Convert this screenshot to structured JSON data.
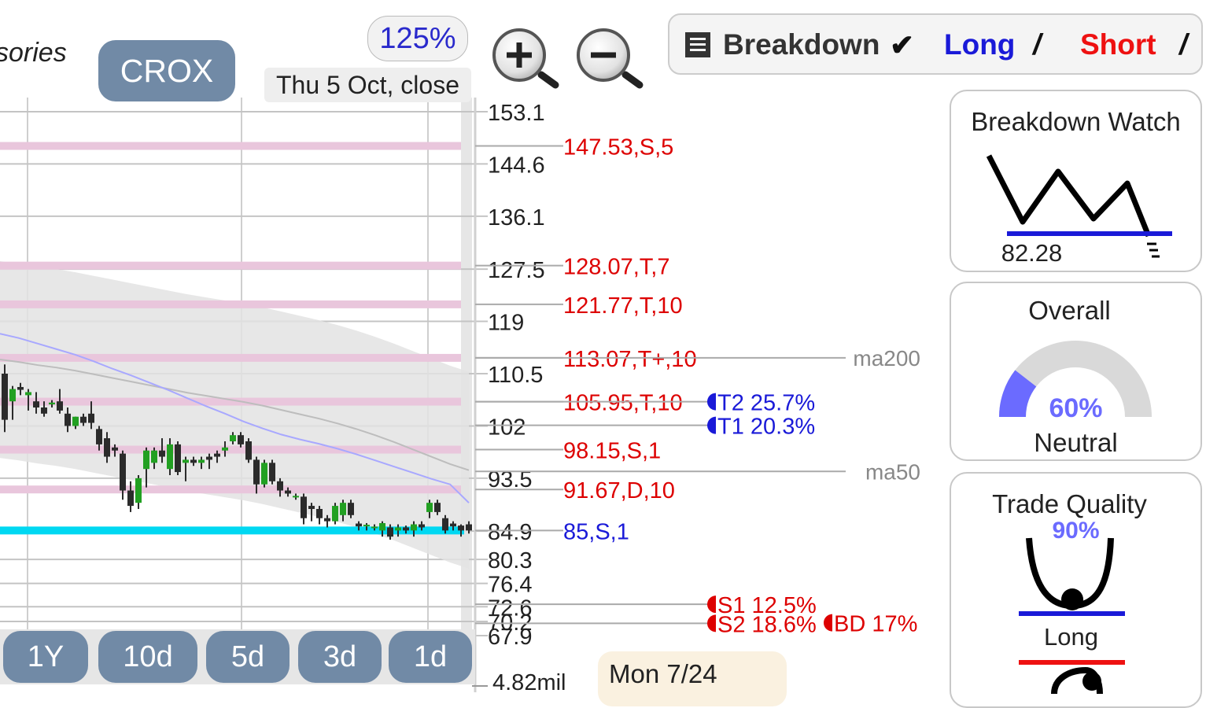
{
  "header": {
    "subtitle_fragment": "sories",
    "ticker": "CROX",
    "zoom_level": "125%",
    "date_label": "Thu 5 Oct, close"
  },
  "zoom_controls": {
    "zoom_in_icon": "magnifier-plus-icon",
    "zoom_out_icon": "magnifier-minus-icon"
  },
  "mode_bar": {
    "breakdown_label": "Breakdown",
    "long_label": "Long",
    "short_label": "Short",
    "breakdown_check": "✔",
    "long_check": "/",
    "short_check": "/"
  },
  "range_buttons": [
    "1Y",
    "10d",
    "5d",
    "3d",
    "1d"
  ],
  "bottom": {
    "volume_label": "4.82mil",
    "hover_date": "Mon 7/24"
  },
  "panels": {
    "breakdown_watch": {
      "title": "Breakdown Watch",
      "value": "82.28"
    },
    "overall": {
      "title": "Overall",
      "percent": "60%",
      "fraction": 0.6,
      "verdict": "Neutral"
    },
    "trade_quality": {
      "title": "Trade Quality",
      "percent": "90%",
      "verdict": "Long"
    }
  },
  "colors": {
    "up_candle": "#22a022",
    "down_candle": "#2b2b2b",
    "level_band": "#e9c6dc",
    "support_line": "#00d8f2",
    "red_text": "#dd0000",
    "blue_text": "#1a1ad8",
    "pill_bg": "#718aa6"
  },
  "chart_data": {
    "type": "candlestick",
    "ylim": [
      65.6,
      155.4
    ],
    "y_ticks": [
      "153.1",
      "144.6",
      "136.1",
      "127.5",
      "119",
      "110.5",
      "102",
      "93.5",
      "84.9",
      "80.3",
      "76.4",
      "72.6",
      "70.2",
      "67.9"
    ],
    "y_tick_values": [
      153.1,
      144.6,
      136.1,
      127.5,
      119,
      110.5,
      102,
      93.5,
      84.9,
      80.3,
      76.4,
      72.6,
      70.2,
      67.9
    ],
    "levels": [
      {
        "value": 147.53,
        "label": "147.53,S,5"
      },
      {
        "value": 128.07,
        "label": "128.07,T,7"
      },
      {
        "value": 121.77,
        "label": "121.77,T,10"
      },
      {
        "value": 113.07,
        "label": "113.07,T+,10"
      },
      {
        "value": 105.95,
        "label": "105.95,T,10"
      },
      {
        "value": 98.15,
        "label": "98.15,S,1"
      },
      {
        "value": 91.67,
        "label": "91.67,D,10"
      }
    ],
    "support": {
      "value": 85,
      "label": "85,S,1"
    },
    "targets": [
      {
        "value": 105.95,
        "label": "T2 25.7%"
      },
      {
        "value": 102.1,
        "label": "T1 20.3%"
      },
      {
        "value": 73.0,
        "label": "S1 12.5%"
      },
      {
        "value": 70.0,
        "label": "BD 17%"
      },
      {
        "value": 69.9,
        "label": "S2 18.6%"
      }
    ],
    "moving_averages": [
      {
        "label": "ma200",
        "value": 113.07,
        "values": [
          112.8,
          112.4,
          111.9,
          111.5,
          111.0,
          110.4,
          109.8,
          109.2,
          108.6,
          108.0,
          107.4,
          106.9,
          106.4,
          105.9,
          105.3,
          104.6,
          103.9,
          103.2,
          102.4,
          101.5,
          100.5,
          99.4,
          98.2,
          97.0,
          95.8,
          94.8
        ]
      },
      {
        "label": "ma50",
        "value": 94.6,
        "values": [
          117.0,
          116.3,
          115.4,
          114.5,
          113.6,
          112.5,
          111.3,
          110.2,
          109.0,
          107.8,
          106.5,
          105.2,
          104.0,
          102.7,
          101.6,
          100.6,
          99.8,
          99.1,
          98.3,
          97.4,
          96.4,
          95.4,
          94.4,
          93.4,
          92.5,
          89.5
        ]
      }
    ],
    "candles": [
      {
        "o": 110.5,
        "h": 112.0,
        "l": 101.0,
        "c": 103.0
      },
      {
        "o": 106.0,
        "h": 108.5,
        "l": 103.0,
        "c": 108.0
      },
      {
        "o": 108.2,
        "h": 109.0,
        "l": 107.0,
        "c": 108.0
      },
      {
        "o": 107.0,
        "h": 108.0,
        "l": 104.5,
        "c": 107.5
      },
      {
        "o": 106.0,
        "h": 107.5,
        "l": 104.0,
        "c": 105.0
      },
      {
        "o": 105.0,
        "h": 106.0,
        "l": 103.5,
        "c": 104.0
      },
      {
        "o": 105.5,
        "h": 106.2,
        "l": 105.0,
        "c": 105.8
      },
      {
        "o": 106.0,
        "h": 108.0,
        "l": 104.0,
        "c": 104.5
      },
      {
        "o": 104.0,
        "h": 105.0,
        "l": 101.0,
        "c": 102.0
      },
      {
        "o": 102.0,
        "h": 103.5,
        "l": 101.5,
        "c": 103.5
      },
      {
        "o": 103.5,
        "h": 104.0,
        "l": 102.0,
        "c": 102.5
      },
      {
        "o": 104.0,
        "h": 106.0,
        "l": 101.5,
        "c": 102.5
      },
      {
        "o": 101.5,
        "h": 102.0,
        "l": 98.0,
        "c": 99.0
      },
      {
        "o": 100.0,
        "h": 101.0,
        "l": 96.0,
        "c": 97.0
      },
      {
        "o": 98.5,
        "h": 99.0,
        "l": 97.0,
        "c": 98.0
      },
      {
        "o": 97.5,
        "h": 98.0,
        "l": 90.0,
        "c": 91.5
      },
      {
        "o": 91.5,
        "h": 93.0,
        "l": 88.0,
        "c": 89.0
      },
      {
        "o": 89.5,
        "h": 94.0,
        "l": 88.5,
        "c": 93.5
      },
      {
        "o": 95.0,
        "h": 98.5,
        "l": 92.0,
        "c": 98.0
      },
      {
        "o": 96.0,
        "h": 98.5,
        "l": 95.0,
        "c": 98.0
      },
      {
        "o": 98.0,
        "h": 100.0,
        "l": 96.0,
        "c": 97.0
      },
      {
        "o": 95.0,
        "h": 100.0,
        "l": 94.0,
        "c": 99.0
      },
      {
        "o": 99.0,
        "h": 99.5,
        "l": 94.0,
        "c": 94.5
      },
      {
        "o": 96.0,
        "h": 97.0,
        "l": 93.0,
        "c": 96.5
      },
      {
        "o": 96.5,
        "h": 97.0,
        "l": 95.5,
        "c": 96.0
      },
      {
        "o": 96.0,
        "h": 97.0,
        "l": 95.0,
        "c": 96.5
      },
      {
        "o": 97.0,
        "h": 97.5,
        "l": 95.0,
        "c": 96.5
      },
      {
        "o": 97.5,
        "h": 98.0,
        "l": 96.0,
        "c": 97.0
      },
      {
        "o": 98.0,
        "h": 99.5,
        "l": 97.0,
        "c": 98.5
      },
      {
        "o": 99.5,
        "h": 101.0,
        "l": 99.0,
        "c": 100.5
      },
      {
        "o": 100.5,
        "h": 101.0,
        "l": 98.5,
        "c": 99.0
      },
      {
        "o": 99.5,
        "h": 100.0,
        "l": 96.0,
        "c": 96.5
      },
      {
        "o": 96.5,
        "h": 97.0,
        "l": 91.0,
        "c": 92.5
      },
      {
        "o": 92.5,
        "h": 96.5,
        "l": 92.0,
        "c": 96.0
      },
      {
        "o": 96.0,
        "h": 96.5,
        "l": 92.5,
        "c": 93.0
      },
      {
        "o": 93.0,
        "h": 93.5,
        "l": 90.5,
        "c": 91.5
      },
      {
        "o": 91.5,
        "h": 92.0,
        "l": 90.5,
        "c": 91.0
      },
      {
        "o": 90.5,
        "h": 91.0,
        "l": 90.0,
        "c": 90.5
      },
      {
        "o": 90.5,
        "h": 91.0,
        "l": 86.0,
        "c": 87.0
      },
      {
        "o": 89.0,
        "h": 89.5,
        "l": 86.5,
        "c": 88.5
      },
      {
        "o": 88.5,
        "h": 89.0,
        "l": 86.0,
        "c": 87.0
      },
      {
        "o": 87.0,
        "h": 87.5,
        "l": 85.5,
        "c": 86.5
      },
      {
        "o": 86.5,
        "h": 89.5,
        "l": 86.0,
        "c": 89.0
      },
      {
        "o": 87.5,
        "h": 90.0,
        "l": 86.5,
        "c": 89.5
      },
      {
        "o": 89.5,
        "h": 90.0,
        "l": 87.0,
        "c": 87.5
      },
      {
        "o": 86.0,
        "h": 86.5,
        "l": 85.0,
        "c": 85.8
      },
      {
        "o": 85.8,
        "h": 86.2,
        "l": 85.0,
        "c": 85.8
      },
      {
        "o": 85.5,
        "h": 86.0,
        "l": 85.0,
        "c": 85.5
      },
      {
        "o": 85.0,
        "h": 86.5,
        "l": 84.0,
        "c": 86.2
      },
      {
        "o": 85.5,
        "h": 86.0,
        "l": 83.5,
        "c": 84.0
      },
      {
        "o": 85.0,
        "h": 86.0,
        "l": 84.0,
        "c": 85.5
      },
      {
        "o": 85.5,
        "h": 85.8,
        "l": 84.5,
        "c": 85.0
      },
      {
        "o": 85.0,
        "h": 86.5,
        "l": 84.0,
        "c": 86.0
      },
      {
        "o": 86.0,
        "h": 86.5,
        "l": 85.0,
        "c": 85.5
      },
      {
        "o": 88.0,
        "h": 90.0,
        "l": 87.0,
        "c": 89.5
      },
      {
        "o": 89.5,
        "h": 90.0,
        "l": 87.5,
        "c": 88.0
      },
      {
        "o": 87.0,
        "h": 87.5,
        "l": 84.5,
        "c": 85.0
      },
      {
        "o": 86.0,
        "h": 86.5,
        "l": 85.0,
        "c": 85.8
      },
      {
        "o": 85.8,
        "h": 86.0,
        "l": 84.0,
        "c": 85.0
      },
      {
        "o": 86.0,
        "h": 86.5,
        "l": 84.5,
        "c": 85.0
      }
    ]
  }
}
